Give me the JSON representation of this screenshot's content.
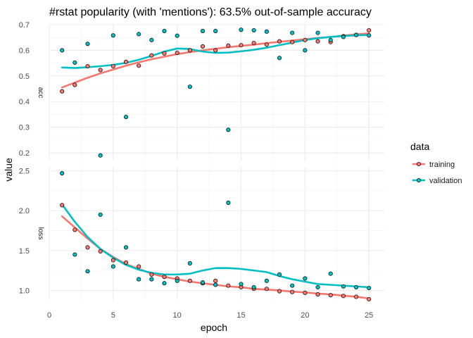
{
  "chart_data": {
    "type": "scatter",
    "title": "#rstat popularity (with 'mentions'): 63.5% out-of-sample accuracy",
    "xlabel": "epoch",
    "ylabel": "value",
    "x_ticks": [
      0,
      5,
      10,
      15,
      20,
      25
    ],
    "xlim": [
      0,
      26.2
    ],
    "grid": true,
    "legend": {
      "title": "data",
      "position": "right",
      "entries": [
        {
          "label": "training",
          "color": "#F8766D"
        },
        {
          "label": "validation",
          "color": "#00BFC4"
        }
      ]
    },
    "facets": [
      {
        "strip": "acc",
        "ylim": [
          0.17,
          0.7
        ],
        "y_ticks": [
          0.2,
          0.3,
          0.4,
          0.5,
          0.6,
          0.7
        ],
        "y_tick_labels": [
          "0.2",
          "0.3",
          "0.4",
          "0.5",
          "0.6",
          "0.7"
        ],
        "series": [
          {
            "name": "training",
            "x": [
              1,
              2,
              3,
              4,
              5,
              6,
              7,
              8,
              9,
              10,
              11,
              12,
              13,
              14,
              15,
              16,
              17,
              18,
              19,
              20,
              21,
              22,
              23,
              24,
              25
            ],
            "values": [
              0.44,
              0.465,
              0.538,
              0.523,
              0.538,
              0.555,
              0.54,
              0.58,
              0.588,
              0.59,
              0.6,
              0.615,
              0.6,
              0.618,
              0.62,
              0.628,
              0.622,
              0.635,
              0.632,
              0.64,
              0.635,
              0.632,
              0.655,
              0.66,
              0.678
            ],
            "smooth": [
              0.455,
              0.474,
              0.493,
              0.51,
              0.525,
              0.54,
              0.553,
              0.565,
              0.575,
              0.585,
              0.593,
              0.6,
              0.606,
              0.612,
              0.617,
              0.622,
              0.628,
              0.633,
              0.638,
              0.643,
              0.648,
              0.652,
              0.657,
              0.662,
              0.666
            ]
          },
          {
            "name": "validation",
            "x": [
              1,
              2,
              3,
              4,
              5,
              6,
              7,
              8,
              9,
              10,
              11,
              12,
              13,
              14,
              15,
              16,
              17,
              18,
              19,
              20,
              21,
              22,
              23,
              24,
              25
            ],
            "values": [
              0.6,
              0.552,
              0.625,
              0.19,
              0.658,
              0.34,
              0.663,
              0.64,
              0.675,
              0.657,
              0.458,
              0.675,
              0.675,
              0.29,
              0.68,
              0.678,
              0.673,
              0.57,
              0.668,
              0.6,
              0.668,
              0.64,
              0.652,
              0.66,
              0.658
            ],
            "smooth": [
              0.533,
              0.531,
              0.534,
              0.538,
              0.543,
              0.551,
              0.563,
              0.578,
              0.595,
              0.607,
              0.605,
              0.595,
              0.59,
              0.591,
              0.596,
              0.602,
              0.61,
              0.62,
              0.63,
              0.64,
              0.647,
              0.652,
              0.656,
              0.658,
              0.66
            ]
          }
        ]
      },
      {
        "strip": "loss",
        "ylim": [
          0.88,
          2.55
        ],
        "y_ticks": [
          1.0,
          1.5,
          2.0,
          2.5
        ],
        "y_tick_labels": [
          "1.0",
          "1.5",
          "2.0",
          "2.5"
        ],
        "series": [
          {
            "name": "training",
            "x": [
              1,
              2,
              3,
              4,
              5,
              6,
              7,
              8,
              9,
              10,
              11,
              12,
              13,
              14,
              15,
              16,
              17,
              18,
              19,
              20,
              21,
              22,
              23,
              24,
              25
            ],
            "values": [
              2.07,
              1.76,
              1.54,
              1.49,
              1.38,
              1.35,
              1.3,
              1.2,
              1.17,
              1.15,
              1.12,
              1.09,
              1.12,
              1.06,
              1.04,
              1.02,
              1.02,
              0.99,
              0.98,
              0.97,
              0.95,
              0.94,
              0.93,
              0.92,
              0.89
            ],
            "smooth": [
              1.93,
              1.79,
              1.65,
              1.52,
              1.42,
              1.33,
              1.27,
              1.21,
              1.17,
              1.14,
              1.11,
              1.09,
              1.07,
              1.05,
              1.04,
              1.02,
              1.01,
              1.0,
              0.985,
              0.975,
              0.96,
              0.95,
              0.935,
              0.92,
              0.9
            ]
          },
          {
            "name": "validation",
            "x": [
              1,
              2,
              3,
              4,
              5,
              6,
              7,
              8,
              9,
              10,
              11,
              12,
              13,
              14,
              15,
              16,
              17,
              18,
              19,
              20,
              21,
              22,
              23,
              24,
              25
            ],
            "values": [
              2.47,
              1.45,
              1.24,
              1.95,
              1.3,
              1.54,
              1.14,
              1.14,
              1.09,
              1.12,
              1.34,
              1.1,
              1.07,
              2.1,
              1.08,
              1.04,
              1.12,
              1.2,
              1.06,
              1.15,
              1.04,
              1.21,
              1.05,
              1.04,
              1.03
            ],
            "smooth": [
              2.08,
              1.86,
              1.67,
              1.52,
              1.41,
              1.32,
              1.26,
              1.22,
              1.2,
              1.2,
              1.21,
              1.25,
              1.28,
              1.28,
              1.27,
              1.25,
              1.23,
              1.18,
              1.14,
              1.11,
              1.08,
              1.07,
              1.06,
              1.05,
              1.04
            ]
          }
        ]
      }
    ]
  }
}
